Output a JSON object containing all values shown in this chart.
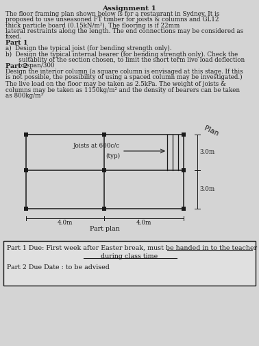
{
  "title": "Assignment 1",
  "body_line1": "The floor framing plan shown below is for a restaurant in Sydney. It is",
  "body_line2": "proposed to use unseasoned FT timber for joists & columns and GL12",
  "body_line3": "thick particle board (0.15kN/m²). The flooring is if 22mm",
  "body_line4": "lateral restraints along the length. The end connections may be considered as",
  "body_line5": "fixed.",
  "part1_title": "Part 1",
  "part1_a": "a)  Design the typical joist (for bending strength only).",
  "part1_b": "b)  Design the typical internal bearer (for bending strength only). Check the",
  "part1_b2": "       suitablity of the section chosen, to limit the short term live load deflection",
  "part1_b3": "       to span/300",
  "part2_title": "Part 2",
  "part2_line1": "Design the interior column (a square column is envisaged at this stage. If this",
  "part2_line2": "is not possible, the possibility of using a spaced column may be investigated.)",
  "live1": "The live load on the floor may be taken as 2.5kPa. The weight of joists &",
  "live2": "columns may be taken as 1150kg/m² and the density of bearers can be taken",
  "live3": "as 800kg/m³",
  "joists_label": "Joists at 600c/c",
  "joists_label2": "(typ)",
  "dim_4m_left": "4.0m",
  "dim_4m_right": "4.0m",
  "dim_3m_top": "3.0m",
  "dim_3m_bot": "3.0m",
  "plan_label": "Plan",
  "part_plan_label": "Part plan",
  "due_text1": "Part 1 Due: First week after Easter break, must be handed in to the teacher",
  "due_text2": "during class time",
  "due_text3": "Part 2 Due Date : to be advised",
  "bg_color": "#d4d4d4",
  "line_color": "#1a1a1a",
  "box_fill": "#e0e0e0"
}
